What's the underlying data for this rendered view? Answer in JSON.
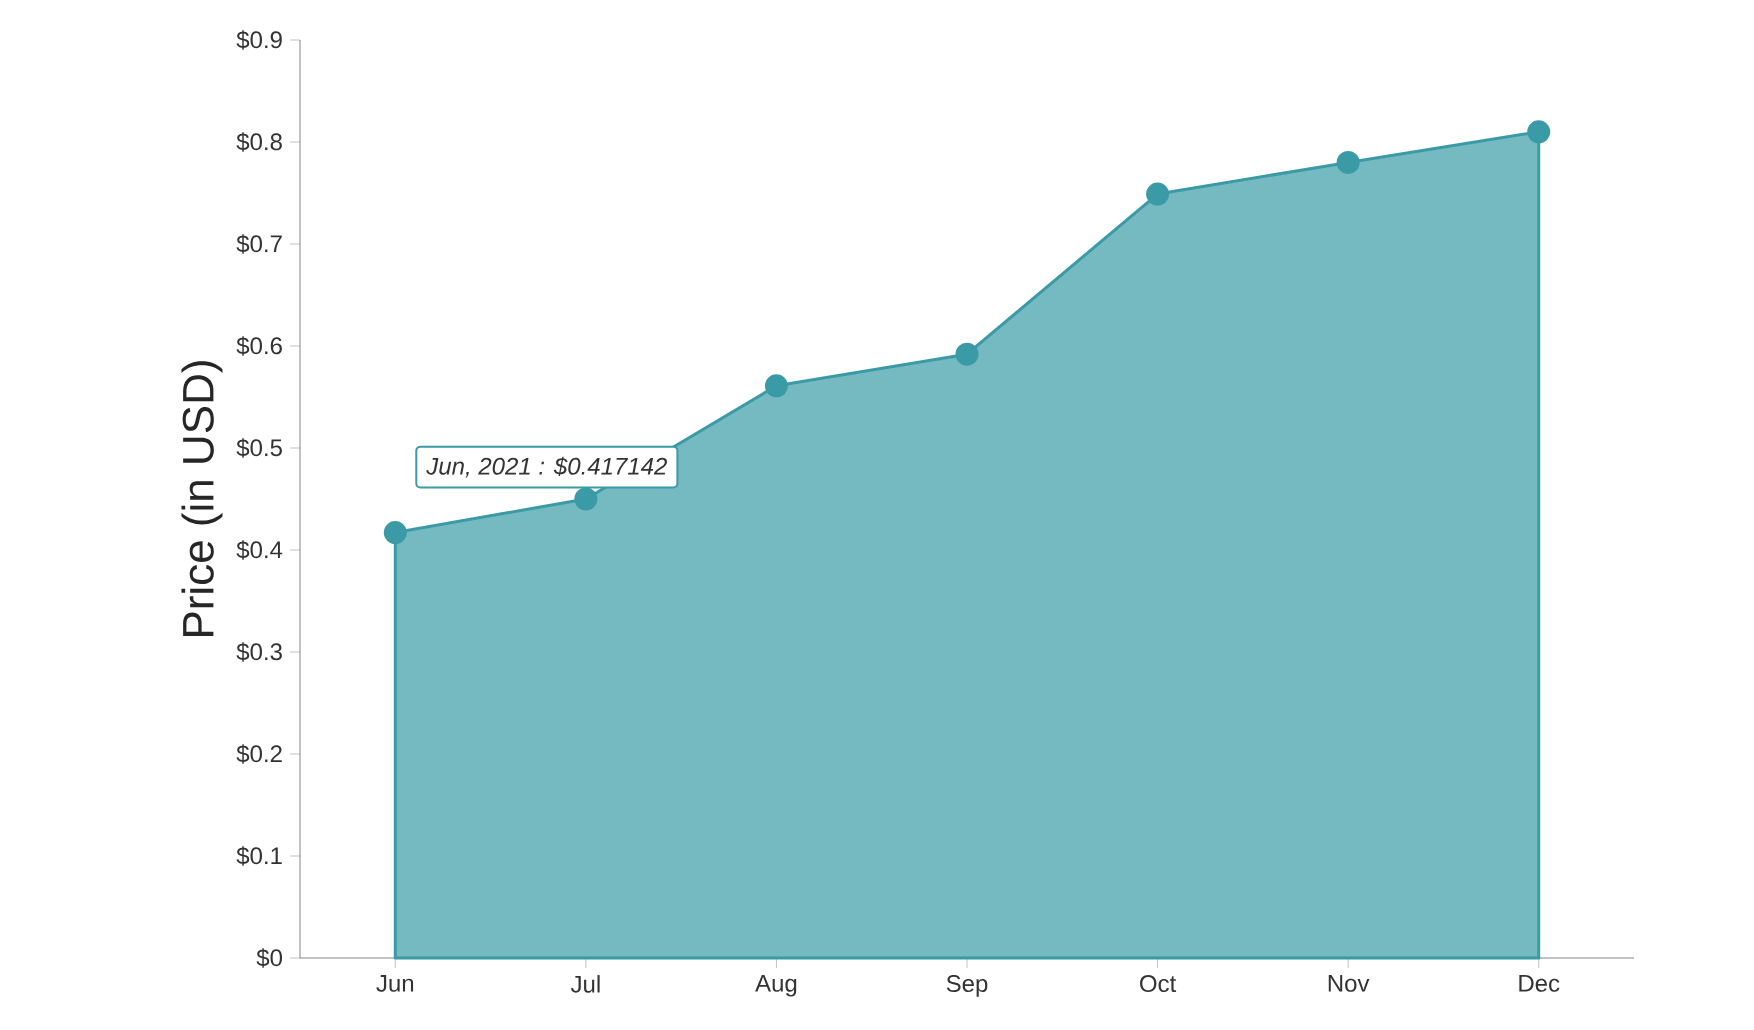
{
  "chart_data": {
    "type": "area",
    "categories": [
      "Jun",
      "Jul",
      "Aug",
      "Sep",
      "Oct",
      "Nov",
      "Dec"
    ],
    "values": [
      0.417142,
      0.45,
      0.561,
      0.592,
      0.749,
      0.78,
      0.81
    ],
    "color": "#3a9ba6",
    "marker": "circle",
    "ylabel": "Price (in USD)",
    "ylim": [
      0,
      0.9
    ],
    "yticks": [
      {
        "value": 0,
        "label": "$0"
      },
      {
        "value": 0.1,
        "label": "$0.1"
      },
      {
        "value": 0.2,
        "label": "$0.2"
      },
      {
        "value": 0.3,
        "label": "$0.3"
      },
      {
        "value": 0.4,
        "label": "$0.4"
      },
      {
        "value": 0.5,
        "label": "$0.5"
      },
      {
        "value": 0.6,
        "label": "$0.6"
      },
      {
        "value": 0.7,
        "label": "$0.7"
      },
      {
        "value": 0.8,
        "label": "$0.8"
      },
      {
        "value": 0.9,
        "label": "$0.9"
      }
    ],
    "annotations": [
      {
        "text": "Jun, 2021 : $0.417142",
        "x": "Jun",
        "y": 0.417142
      }
    ],
    "grid": false
  }
}
